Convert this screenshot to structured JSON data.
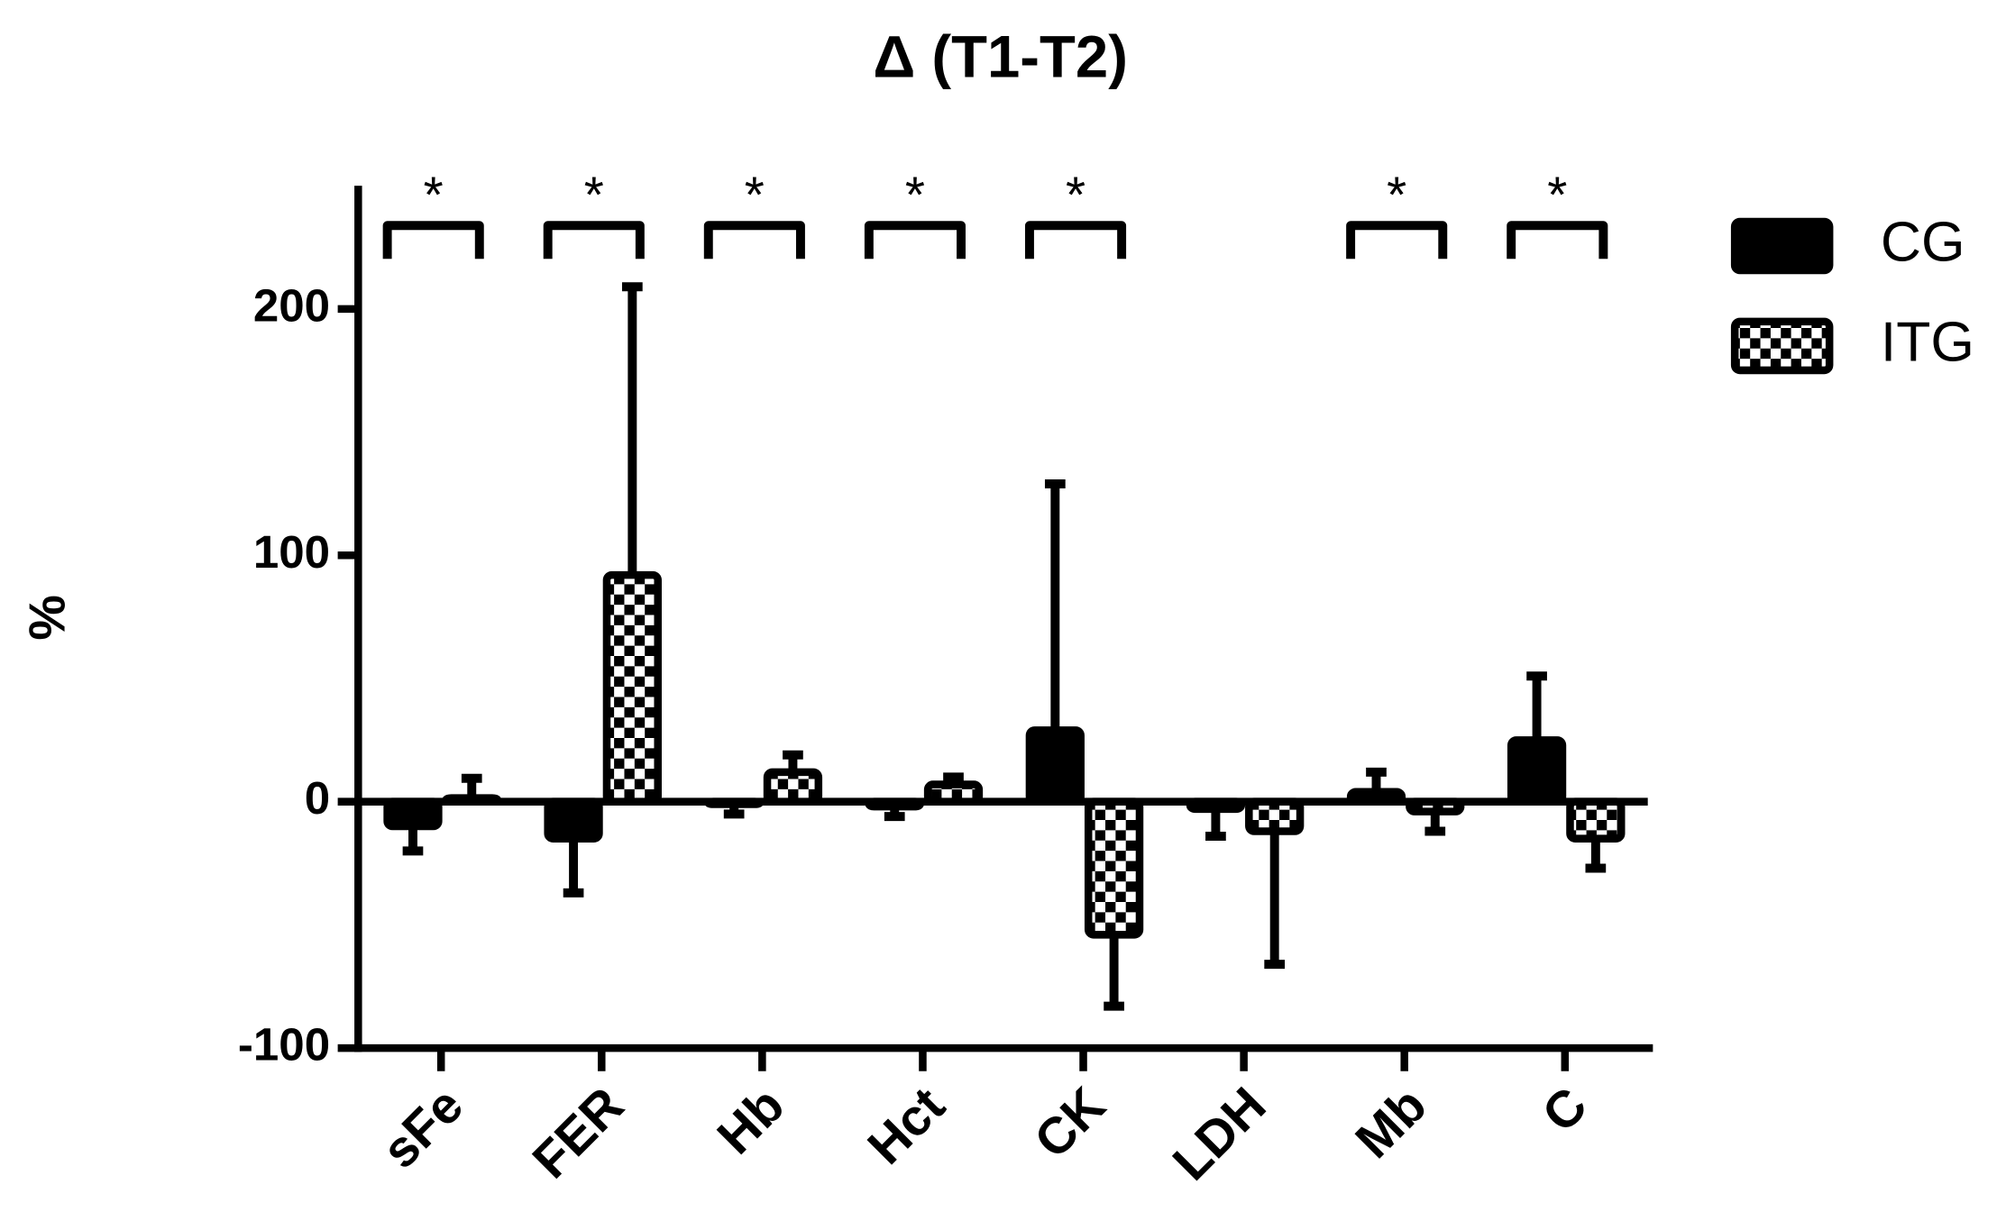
{
  "chart_data": {
    "type": "bar",
    "title": "Δ (T1-T2)",
    "y_label": "%",
    "categories": [
      "sFe",
      "FER",
      "Hb",
      "Hct",
      "CK",
      "LDH",
      "Mb",
      "C"
    ],
    "series": [
      {
        "name": "CG",
        "color": "#000000",
        "pattern": "solid",
        "values": [
          -10,
          -15,
          -1,
          -2,
          29,
          -3,
          4,
          25
        ],
        "errors": [
          10,
          22,
          4,
          4,
          100,
          11,
          8,
          26
        ]
      },
      {
        "name": "ITG",
        "color": "#000000",
        "pattern": "checker",
        "values": [
          1.5,
          92,
          12,
          7,
          -54,
          -12,
          -4,
          -15
        ],
        "errors": [
          8,
          117,
          7,
          3,
          29,
          54,
          8,
          12
        ]
      }
    ],
    "significance": [
      "*",
      "*",
      "*",
      "*",
      "*",
      null,
      "*",
      "*"
    ],
    "ylim": [
      -100,
      250
    ],
    "yticks": [
      -100,
      0,
      100,
      200
    ],
    "grid": false
  }
}
